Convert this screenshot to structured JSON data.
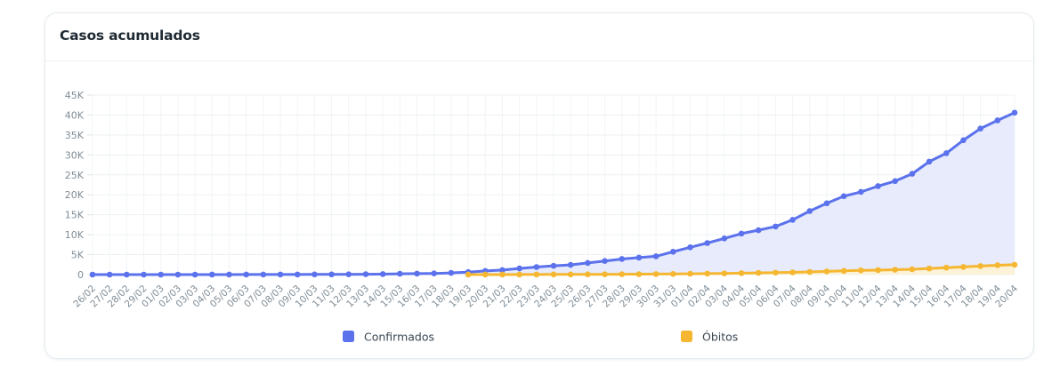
{
  "card": {
    "title": "Casos acumulados"
  },
  "chart_data": {
    "type": "area",
    "title": "Casos acumulados",
    "x": [
      "26/02",
      "27/02",
      "28/02",
      "29/02",
      "01/03",
      "02/03",
      "03/03",
      "04/03",
      "05/03",
      "06/03",
      "07/03",
      "08/03",
      "09/03",
      "10/03",
      "11/03",
      "12/03",
      "13/03",
      "14/03",
      "15/03",
      "16/03",
      "17/03",
      "18/03",
      "19/03",
      "20/03",
      "21/03",
      "22/03",
      "23/03",
      "24/03",
      "25/03",
      "26/03",
      "27/03",
      "28/03",
      "29/03",
      "30/03",
      "31/03",
      "01/04",
      "02/04",
      "03/04",
      "04/04",
      "05/04",
      "06/04",
      "07/04",
      "08/04",
      "09/04",
      "10/04",
      "11/04",
      "12/04",
      "13/04",
      "14/04",
      "15/04",
      "16/04",
      "17/04",
      "18/04",
      "19/04",
      "20/04"
    ],
    "ylim": [
      0,
      45000
    ],
    "yticks": [
      0,
      5000,
      10000,
      15000,
      20000,
      25000,
      30000,
      35000,
      40000,
      45000
    ],
    "ytick_labels": [
      "0",
      "5K",
      "10K",
      "15K",
      "20K",
      "25K",
      "30K",
      "35K",
      "40K",
      "45K"
    ],
    "grid": true,
    "legend_position": "bottom",
    "series": [
      {
        "name": "Confirmados",
        "color": "#5b72ec",
        "fill": "#e6eafc",
        "values": [
          1,
          1,
          1,
          2,
          2,
          2,
          2,
          3,
          8,
          13,
          19,
          25,
          25,
          34,
          52,
          77,
          98,
          121,
          200,
          234,
          291,
          428,
          621,
          904,
          1128,
          1546,
          1891,
          2201,
          2433,
          2915,
          3417,
          3904,
          4256,
          4579,
          5717,
          6836,
          7910,
          9056,
          10278,
          11130,
          12056,
          13717,
          15927,
          17857,
          19638,
          20727,
          22169,
          23430,
          25262,
          28320,
          30425,
          33682,
          36599,
          38654,
          40581
        ]
      },
      {
        "name": "Óbitos",
        "color": "#f5b731",
        "fill": "#fdf2d6",
        "start_index": 22,
        "values": [
          null,
          null,
          null,
          null,
          null,
          null,
          null,
          null,
          null,
          null,
          null,
          null,
          null,
          null,
          null,
          null,
          null,
          null,
          null,
          null,
          null,
          null,
          4,
          7,
          11,
          18,
          25,
          34,
          46,
          59,
          77,
          92,
          111,
          136,
          159,
          201,
          240,
          299,
          359,
          432,
          486,
          553,
          667,
          800,
          941,
          1056,
          1124,
          1223,
          1328,
          1532,
          1736,
          1924,
          2141,
          2347,
          2462
        ]
      }
    ]
  }
}
